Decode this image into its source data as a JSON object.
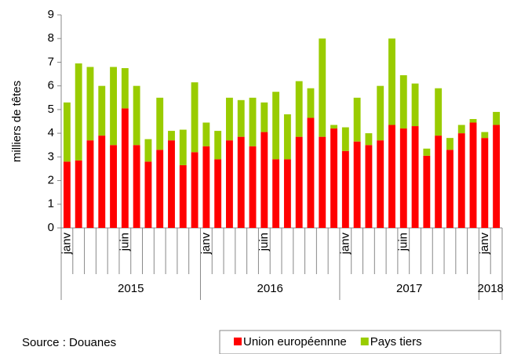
{
  "chart_data": {
    "type": "stacked_bar",
    "y_label": "milliers de têtes",
    "source": "Source : Douanes",
    "categories": [
      "janv",
      null,
      null,
      null,
      null,
      "juin",
      null,
      null,
      null,
      null,
      null,
      null,
      "janv",
      null,
      null,
      null,
      null,
      "juin",
      null,
      null,
      null,
      null,
      null,
      null,
      "janv",
      null,
      null,
      null,
      null,
      "juin",
      null,
      null,
      null,
      null,
      null,
      null,
      "janv",
      null
    ],
    "groups": [
      {
        "label": "2015",
        "size": 12
      },
      {
        "label": "2016",
        "size": 12
      },
      {
        "label": "2017",
        "size": 12
      },
      {
        "label": "2018",
        "size": 2
      }
    ],
    "series": [
      {
        "name": "Union européennne",
        "color": "#ff0000",
        "values": [
          2.8,
          2.85,
          3.7,
          3.9,
          3.5,
          5.05,
          3.5,
          2.8,
          3.3,
          3.7,
          2.65,
          3.2,
          3.45,
          2.9,
          3.7,
          3.85,
          3.45,
          4.05,
          2.9,
          2.9,
          3.85,
          4.65,
          3.85,
          4.2,
          3.25,
          3.65,
          3.5,
          3.7,
          4.35,
          4.2,
          4.3,
          3.05,
          3.9,
          3.3,
          4.0,
          4.45,
          3.8,
          4.35
        ]
      },
      {
        "name": "Pays tiers",
        "color": "#99cc00",
        "values": [
          2.5,
          4.1,
          3.1,
          2.1,
          3.3,
          1.7,
          2.5,
          0.95,
          2.2,
          0.4,
          1.5,
          2.95,
          1.0,
          1.2,
          1.8,
          1.55,
          2.05,
          1.25,
          2.85,
          1.9,
          2.35,
          1.25,
          4.15,
          0.15,
          1.0,
          1.85,
          0.5,
          2.3,
          3.65,
          2.25,
          1.8,
          0.3,
          2.0,
          0.5,
          0.35,
          0.15,
          0.25,
          0.55
        ]
      }
    ],
    "ylim": [
      0,
      9
    ],
    "yticks": [
      0,
      1,
      2,
      3,
      4,
      5,
      6,
      7,
      8,
      9
    ]
  }
}
